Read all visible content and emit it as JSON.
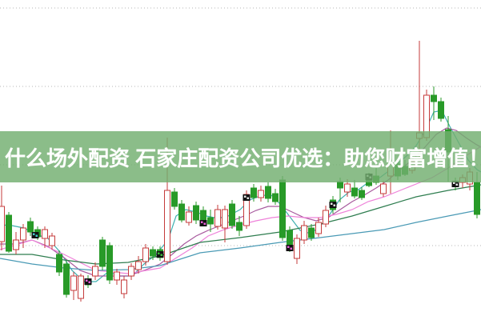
{
  "banner": {
    "text": "什么场外配资 石家庄配资公司优选：助您财富增值！",
    "bg_color": "rgba(113,175,111,0.82)",
    "text_color": "#ffffff"
  },
  "chart_data": {
    "type": "candlestick",
    "title": "",
    "xlabel": "",
    "ylabel": "",
    "ylim": [
      0,
      40
    ],
    "grid": "horizontal-dotted",
    "legend_position": "none",
    "x_start": 2,
    "x_step": 9,
    "body_width": 7,
    "background": "#ffffff",
    "gridline_color": "#b5b5b5",
    "gridlines_price": [
      39.0,
      29.2,
      19.4,
      9.3
    ],
    "up_color": "#c53b3b",
    "down_color": "#289a28",
    "candles": [
      [
        9.8,
        16.8,
        8.7,
        14.2
      ],
      [
        13.1,
        13.5,
        8.4,
        8.6
      ],
      [
        8.8,
        11.0,
        8.2,
        10.0
      ],
      [
        10.0,
        12.0,
        9.0,
        11.5
      ],
      [
        12.3,
        12.8,
        10.5,
        11.0
      ],
      [
        11.3,
        11.7,
        10.0,
        10.4
      ],
      [
        10.2,
        11.7,
        9.0,
        11.3
      ],
      [
        9.3,
        10.9,
        8.8,
        10.5
      ],
      [
        8.2,
        8.7,
        5.5,
        6.0
      ],
      [
        7.0,
        7.4,
        2.8,
        3.2
      ],
      [
        3.7,
        6.0,
        2.5,
        5.5
      ],
      [
        2.7,
        5.8,
        2.3,
        5.5
      ],
      [
        5.0,
        5.6,
        4.0,
        4.4
      ],
      [
        5.5,
        7.2,
        5.0,
        6.7
      ],
      [
        10.0,
        10.4,
        6.2,
        6.7
      ],
      [
        9.3,
        9.7,
        4.5,
        5.0
      ],
      [
        5.0,
        6.4,
        4.4,
        6.0
      ],
      [
        3.3,
        5.5,
        2.7,
        5.0
      ],
      [
        5.5,
        7.1,
        5.0,
        6.7
      ],
      [
        6.3,
        8.0,
        5.8,
        7.3
      ],
      [
        7.3,
        9.5,
        6.8,
        9.0
      ],
      [
        8.8,
        9.2,
        7.5,
        8.0
      ],
      [
        8.8,
        9.2,
        7.4,
        7.8
      ],
      [
        7.3,
        22.8,
        6.9,
        16.2
      ],
      [
        16.0,
        16.5,
        13.8,
        14.2
      ],
      [
        14.5,
        15.0,
        12.2,
        12.5
      ],
      [
        12.2,
        14.2,
        11.8,
        13.5
      ],
      [
        14.3,
        14.8,
        12.0,
        12.5
      ],
      [
        13.7,
        14.2,
        11.7,
        12.3
      ],
      [
        12.8,
        13.8,
        11.0,
        12.0
      ],
      [
        11.7,
        14.4,
        11.3,
        13.8
      ],
      [
        11.5,
        14.3,
        9.7,
        13.8
      ],
      [
        14.5,
        15.0,
        11.4,
        11.8
      ],
      [
        12.2,
        13.0,
        10.5,
        11.2
      ],
      [
        11.8,
        16.2,
        11.4,
        15.7
      ],
      [
        16.5,
        17.0,
        14.8,
        15.3
      ],
      [
        15.3,
        16.8,
        14.8,
        16.2
      ],
      [
        16.7,
        17.2,
        14.7,
        15.2
      ],
      [
        15.8,
        16.4,
        14.4,
        14.8
      ],
      [
        17.5,
        18.0,
        9.9,
        10.3
      ],
      [
        11.2,
        11.7,
        8.5,
        9.3
      ],
      [
        7.7,
        10.7,
        7.0,
        10.2
      ],
      [
        10.0,
        12.4,
        9.5,
        11.8
      ],
      [
        11.5,
        12.0,
        9.9,
        10.3
      ],
      [
        10.8,
        12.8,
        10.4,
        12.2
      ],
      [
        12.0,
        14.3,
        11.6,
        13.7
      ],
      [
        15.0,
        15.5,
        13.3,
        13.8
      ],
      [
        17.3,
        17.8,
        14.7,
        16.5
      ],
      [
        16.0,
        17.6,
        15.4,
        17.0
      ],
      [
        16.5,
        17.5,
        15.2,
        15.5
      ],
      [
        16.2,
        16.6,
        15.0,
        15.3
      ],
      [
        17.6,
        18.4,
        16.6,
        16.8
      ],
      [
        18.0,
        19.0,
        16.9,
        17.2
      ],
      [
        15.8,
        17.4,
        15.4,
        17.0
      ],
      [
        18.0,
        23.7,
        15.8,
        19.5
      ],
      [
        19.5,
        20.0,
        17.5,
        18.0
      ],
      [
        19.2,
        20.0,
        18.0,
        18.2
      ],
      [
        18.7,
        20.2,
        18.3,
        19.8
      ],
      [
        22.7,
        34.9,
        19.5,
        23.4
      ],
      [
        22.8,
        28.8,
        22.4,
        28.1
      ],
      [
        28.1,
        29.2,
        25.0,
        27.3
      ],
      [
        27.3,
        27.8,
        24.8,
        25.2
      ],
      [
        23.8,
        25.5,
        17.3,
        21.0
      ],
      [
        17.3,
        17.8,
        16.2,
        16.7
      ],
      [
        17.2,
        18.2,
        16.5,
        17.8
      ],
      [
        17.0,
        19.0,
        16.2,
        18.5
      ],
      [
        17.2,
        18.5,
        12.7,
        13.2
      ]
    ],
    "ma_lines": [
      {
        "name": "ma-line-cyan",
        "color": "#3fb0b0",
        "points": [
          [
            0,
            11.9
          ],
          [
            15,
            11.8
          ],
          [
            30,
            11.5
          ],
          [
            45,
            10.7
          ],
          [
            60,
            10.2
          ],
          [
            75,
            8.5
          ],
          [
            90,
            6.2
          ],
          [
            105,
            4.8
          ],
          [
            120,
            4.8
          ],
          [
            135,
            6.0
          ],
          [
            150,
            5.5
          ],
          [
            165,
            5.5
          ],
          [
            180,
            7.0
          ],
          [
            195,
            8.2
          ],
          [
            210,
            10.0
          ],
          [
            220,
            13.0
          ],
          [
            232,
            13.8
          ],
          [
            245,
            13.5
          ],
          [
            258,
            13.0
          ],
          [
            272,
            12.7
          ],
          [
            285,
            13.0
          ],
          [
            300,
            13.8
          ],
          [
            312,
            15.0
          ],
          [
            325,
            15.5
          ],
          [
            338,
            15.7
          ],
          [
            350,
            14.5
          ],
          [
            363,
            12.8
          ],
          [
            375,
            11.2
          ],
          [
            388,
            10.8
          ],
          [
            400,
            11.7
          ],
          [
            412,
            13.2
          ],
          [
            424,
            15.0
          ],
          [
            436,
            16.0
          ],
          [
            448,
            16.3
          ],
          [
            460,
            17.2
          ],
          [
            472,
            17.6
          ],
          [
            484,
            18.5
          ],
          [
            496,
            19.5
          ],
          [
            508,
            20.5
          ],
          [
            520,
            21.8
          ],
          [
            532,
            23.8
          ],
          [
            542,
            26.0
          ],
          [
            552,
            26.2
          ],
          [
            562,
            24.2
          ],
          [
            574,
            22.0
          ],
          [
            585,
            20.0
          ],
          [
            596,
            18.8
          ],
          [
            601,
            18.5
          ]
        ]
      },
      {
        "name": "ma-line-violet",
        "color": "#a85a9e",
        "points": [
          [
            0,
            9.5
          ],
          [
            20,
            9.5
          ],
          [
            40,
            10.0
          ],
          [
            60,
            9.2
          ],
          [
            80,
            7.8
          ],
          [
            100,
            6.2
          ],
          [
            120,
            5.5
          ],
          [
            140,
            5.5
          ],
          [
            160,
            5.5
          ],
          [
            180,
            6.2
          ],
          [
            200,
            7.0
          ],
          [
            215,
            8.2
          ],
          [
            230,
            9.5
          ],
          [
            245,
            10.5
          ],
          [
            260,
            11.2
          ],
          [
            275,
            11.8
          ],
          [
            290,
            12.4
          ],
          [
            305,
            13.0
          ],
          [
            320,
            13.7
          ],
          [
            335,
            14.2
          ],
          [
            350,
            14.2
          ],
          [
            365,
            13.5
          ],
          [
            380,
            12.8
          ],
          [
            395,
            12.4
          ],
          [
            410,
            12.8
          ],
          [
            425,
            13.8
          ],
          [
            440,
            14.8
          ],
          [
            455,
            15.6
          ],
          [
            470,
            16.5
          ],
          [
            485,
            17.5
          ],
          [
            500,
            18.8
          ],
          [
            515,
            20.0
          ],
          [
            530,
            21.5
          ],
          [
            545,
            23.2
          ],
          [
            558,
            24.0
          ],
          [
            570,
            23.7
          ],
          [
            582,
            22.8
          ],
          [
            594,
            22.0
          ],
          [
            601,
            21.6
          ]
        ]
      },
      {
        "name": "ma-line-magenta",
        "color": "#ee82d9",
        "points": [
          [
            0,
            8.8
          ],
          [
            40,
            10.0
          ],
          [
            80,
            8.2
          ],
          [
            120,
            6.2
          ],
          [
            160,
            5.8
          ],
          [
            200,
            6.5
          ],
          [
            240,
            9.0
          ],
          [
            260,
            10.5
          ],
          [
            280,
            11.3
          ],
          [
            300,
            11.9
          ],
          [
            320,
            12.4
          ],
          [
            340,
            12.8
          ],
          [
            360,
            13.0
          ],
          [
            380,
            12.8
          ],
          [
            400,
            12.8
          ],
          [
            420,
            13.2
          ],
          [
            440,
            13.8
          ],
          [
            460,
            14.8
          ],
          [
            480,
            15.4
          ],
          [
            500,
            16.2
          ],
          [
            520,
            17.0
          ],
          [
            540,
            17.8
          ],
          [
            560,
            19.0
          ],
          [
            580,
            20.4
          ],
          [
            601,
            21.7
          ]
        ]
      },
      {
        "name": "ma-line-seagreen",
        "color": "#2e7d4f",
        "points": [
          [
            0,
            8.2
          ],
          [
            40,
            8.2
          ],
          [
            80,
            7.5
          ],
          [
            120,
            7.0
          ],
          [
            160,
            7.2
          ],
          [
            200,
            8.0
          ],
          [
            250,
            9.7
          ],
          [
            300,
            10.3
          ],
          [
            350,
            11.0
          ],
          [
            400,
            12.0
          ],
          [
            440,
            13.0
          ],
          [
            480,
            14.2
          ],
          [
            520,
            15.4
          ],
          [
            560,
            16.2
          ],
          [
            601,
            16.9
          ]
        ]
      },
      {
        "name": "ma-line-steelblue",
        "color": "#4a9ab5",
        "points": [
          [
            0,
            7.7
          ],
          [
            40,
            7.0
          ],
          [
            80,
            6.5
          ],
          [
            120,
            6.2
          ],
          [
            160,
            6.3
          ],
          [
            200,
            6.8
          ],
          [
            250,
            8.4
          ],
          [
            300,
            9.0
          ],
          [
            350,
            9.7
          ],
          [
            400,
            10.3
          ],
          [
            440,
            10.8
          ],
          [
            480,
            11.3
          ],
          [
            520,
            12.2
          ],
          [
            560,
            13.0
          ],
          [
            601,
            13.8
          ]
        ]
      }
    ],
    "markers": [
      {
        "x": 44,
        "price": 10.6,
        "dot": "#40c8c8"
      },
      {
        "x": 110,
        "price": 4.8,
        "dot": "#e860d8"
      },
      {
        "x": 200,
        "price": 8.2,
        "dot": "#38b838"
      },
      {
        "x": 254,
        "price": 12.1,
        "dot": "#e860d8"
      },
      {
        "x": 308,
        "price": 15.3,
        "dot": "#e8e8e8"
      },
      {
        "x": 362,
        "price": 9.0,
        "dot": "#e860d8"
      },
      {
        "x": 416,
        "price": 14.4,
        "dot": "#e8e8e8"
      },
      {
        "x": 461,
        "price": 17.9,
        "dot": "#e8e8e8"
      },
      {
        "x": 569,
        "price": 17.0,
        "dot": "#e8e8e8"
      }
    ]
  }
}
